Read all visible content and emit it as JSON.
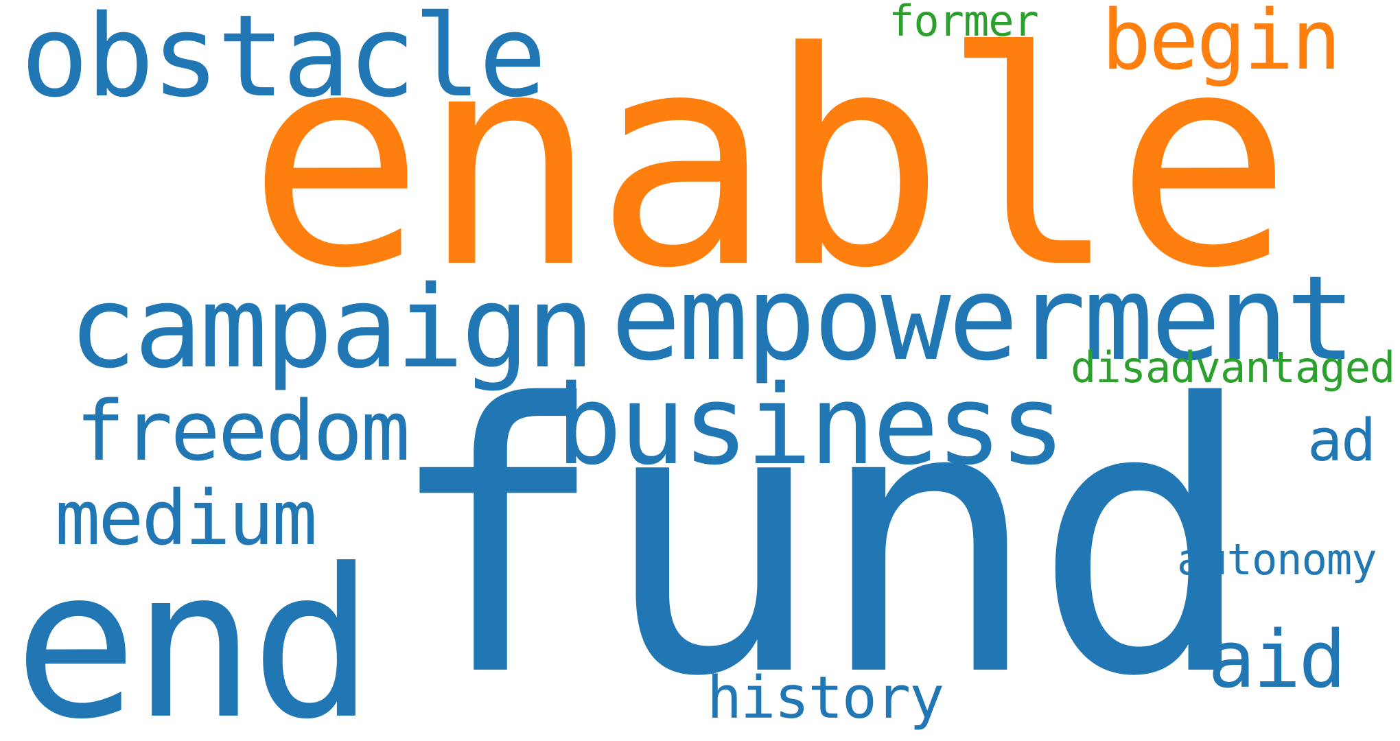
{
  "words": {
    "enable": "enable",
    "fund": "fund",
    "empowerment": "empowerment",
    "campaign": "campaign",
    "end": "end",
    "business": "business",
    "obstacle": "obstacle",
    "begin": "begin",
    "freedom": "freedom",
    "medium": "medium",
    "aid": "aid",
    "ad": "ad",
    "history": "history",
    "disadvantaged": "disadvantaged",
    "autonomy": "autonomy",
    "former": "former"
  },
  "colors": {
    "blue": "#2077b4",
    "orange": "#ff7f0e",
    "green": "#2ca02c",
    "background": "#ffffff"
  }
}
